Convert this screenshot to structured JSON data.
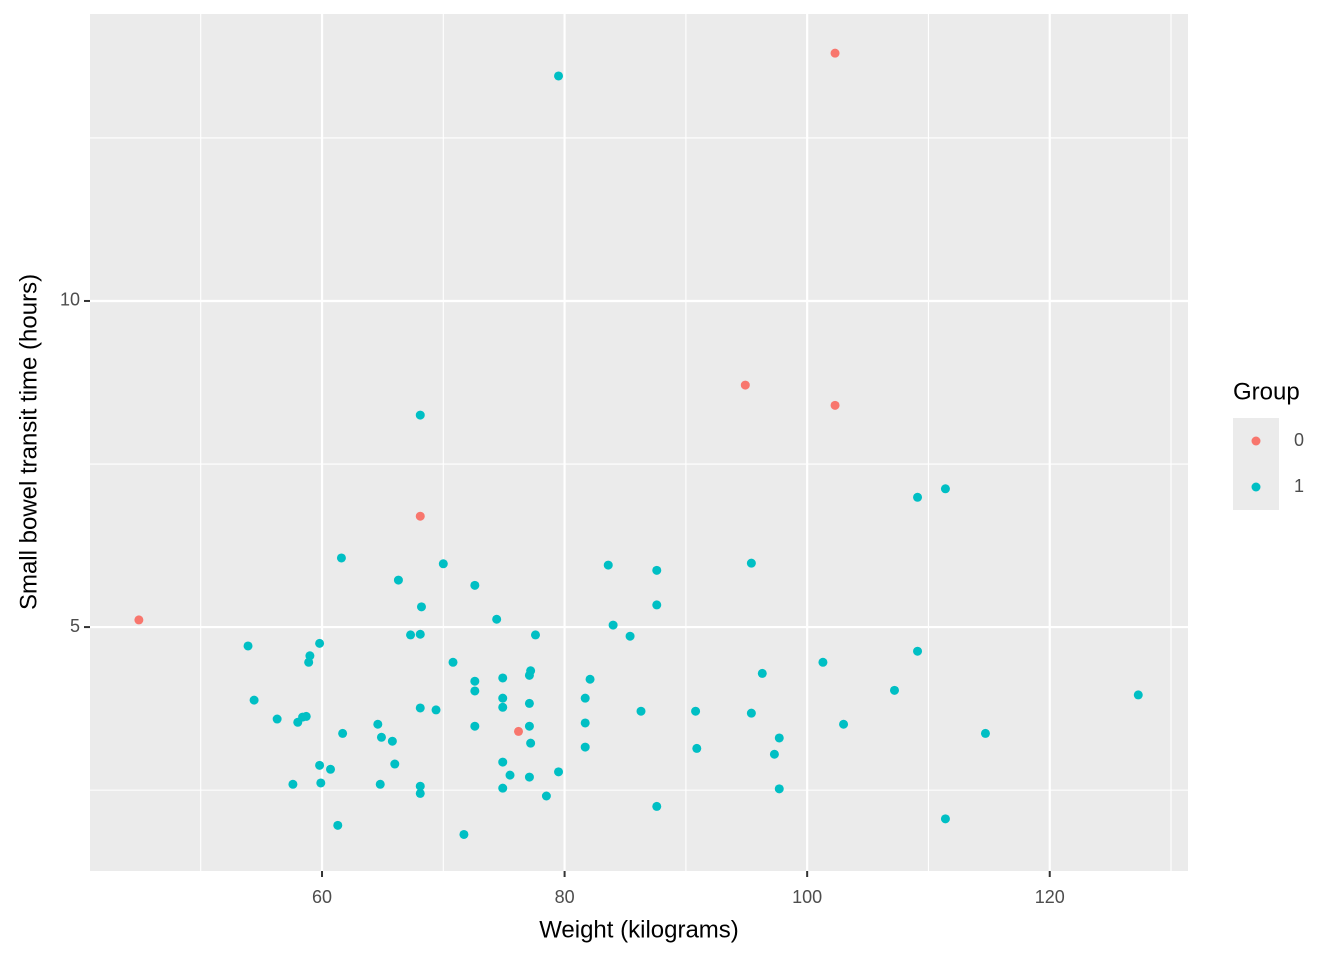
{
  "chart_data": {
    "type": "scatter",
    "x_label": "Weight (kilograms)",
    "y_label": "Small bowel transit time (hours)",
    "legend_title": "Group",
    "legend_position": "right",
    "grid": true,
    "xlim": [
      40.87,
      131.4
    ],
    "ylim": [
      1.26,
      14.4
    ],
    "xticks": [
      60,
      80,
      100,
      120
    ],
    "yticks": [
      5,
      10
    ],
    "series": [
      {
        "name": "0",
        "color": "#F8766D",
        "x": [
          44.9,
          102.3,
          94.9,
          102.3,
          68.1,
          76.2
        ],
        "values": [
          5.11,
          13.8,
          8.71,
          8.4,
          6.7,
          3.4
        ]
      },
      {
        "name": "1",
        "color": "#00BFC4",
        "x": [
          79.5,
          68.1,
          109.1,
          111.4,
          61.6,
          70.0,
          83.6,
          95.4,
          87.6,
          66.3,
          72.6,
          87.6,
          68.2,
          74.4,
          84.0,
          67.3,
          68.1,
          77.6,
          85.4,
          53.9,
          59.8,
          59.0,
          58.9,
          70.8,
          101.3,
          109.1,
          96.3,
          77.2,
          77.1,
          74.9,
          82.1,
          72.6,
          72.6,
          107.2,
          127.3,
          54.4,
          74.9,
          81.7,
          77.1,
          74.9,
          68.1,
          69.4,
          86.3,
          90.8,
          95.4,
          58.7,
          58.4,
          56.3,
          58.0,
          64.6,
          72.6,
          77.1,
          81.7,
          103.0,
          61.7,
          114.7,
          64.9,
          97.7,
          65.8,
          77.2,
          81.7,
          90.9,
          97.3,
          66.0,
          74.9,
          59.8,
          60.7,
          79.5,
          75.5,
          77.1,
          57.6,
          59.9,
          64.8,
          68.1,
          74.9,
          97.7,
          68.1,
          78.5,
          87.6,
          61.3,
          111.4,
          71.7
        ],
        "values": [
          13.45,
          8.25,
          6.99,
          7.12,
          6.06,
          5.97,
          5.95,
          5.98,
          5.87,
          5.72,
          5.64,
          5.34,
          5.31,
          5.12,
          5.03,
          4.88,
          4.89,
          4.88,
          4.86,
          4.71,
          4.75,
          4.56,
          4.46,
          4.46,
          4.46,
          4.63,
          4.29,
          4.33,
          4.26,
          4.22,
          4.2,
          4.17,
          4.02,
          4.03,
          3.96,
          3.88,
          3.91,
          3.91,
          3.83,
          3.77,
          3.76,
          3.73,
          3.71,
          3.71,
          3.68,
          3.63,
          3.62,
          3.59,
          3.54,
          3.51,
          3.48,
          3.48,
          3.53,
          3.51,
          3.37,
          3.37,
          3.31,
          3.3,
          3.25,
          3.22,
          3.16,
          3.14,
          3.05,
          2.9,
          2.93,
          2.88,
          2.82,
          2.78,
          2.73,
          2.7,
          2.59,
          2.61,
          2.59,
          2.56,
          2.53,
          2.52,
          2.45,
          2.41,
          2.25,
          1.96,
          2.06,
          1.82
        ]
      }
    ]
  }
}
